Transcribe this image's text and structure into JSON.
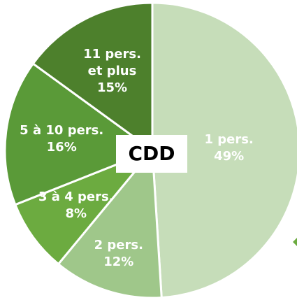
{
  "chart_data": {
    "type": "pie",
    "title": "CDD",
    "categories": [
      "1 pers.",
      "2 pers.",
      "3 à 4 pers.",
      "5 à 10 pers.",
      "11 pers. et plus"
    ],
    "values": [
      49,
      12,
      8,
      16,
      15
    ],
    "value_labels": [
      "49%",
      "12%",
      "8%",
      "16%",
      "15%"
    ],
    "colors": [
      "#c6ddb9",
      "#9fc78a",
      "#6cab40",
      "#5a9a38",
      "#4d802c"
    ]
  }
}
